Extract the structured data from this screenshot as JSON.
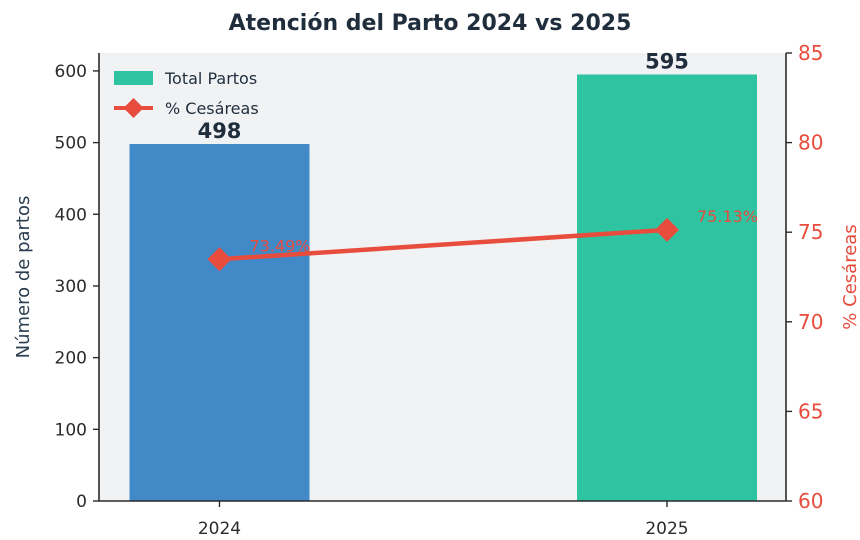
{
  "chart_data": {
    "type": "bar",
    "title": "Atención del Parto 2024 vs 2025",
    "categories": [
      "2024",
      "2025"
    ],
    "series": [
      {
        "name": "Total Partos",
        "type": "bar",
        "axis": "left",
        "values": [
          498,
          595
        ],
        "value_labels": [
          "498",
          "595"
        ],
        "colors": [
          "#4189c7",
          "#2ec4a2"
        ]
      },
      {
        "name": "% Cesáreas",
        "type": "line",
        "axis": "right",
        "values": [
          73.49,
          75.13
        ],
        "value_labels": [
          "73.49%",
          "75.13%"
        ],
        "color": "#e74c3c",
        "marker": "diamond"
      }
    ],
    "ylabel": "Número de partos",
    "ylabel_right": "% Cesáreas",
    "ylim": [
      0,
      625
    ],
    "ylim_right": [
      60,
      85
    ],
    "yticks": [
      0,
      100,
      200,
      300,
      400,
      500,
      600
    ],
    "yticks_right": [
      60,
      65,
      70,
      75,
      80,
      85
    ],
    "legend_position": "upper-left",
    "grid": false,
    "plot_background": "#f1f2f4"
  }
}
